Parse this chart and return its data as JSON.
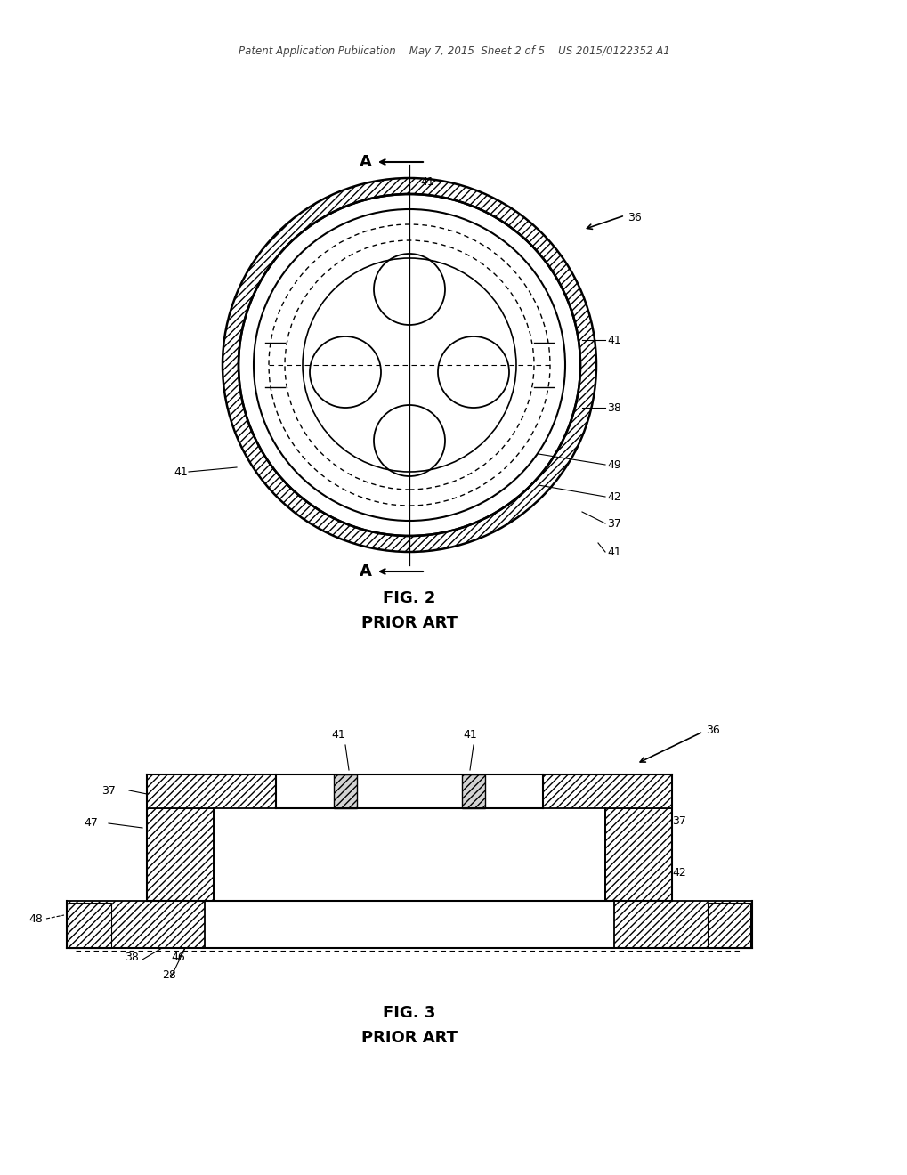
{
  "bg_color": "#ffffff",
  "header": "Patent Application Publication    May 7, 2015  Sheet 2 of 5    US 2015/0122352 A1",
  "fig2_title": "FIG. 2",
  "fig2_sub": "PRIOR ART",
  "fig3_title": "FIG. 3",
  "fig3_sub": "PRIOR ART",
  "lc": "#000000"
}
